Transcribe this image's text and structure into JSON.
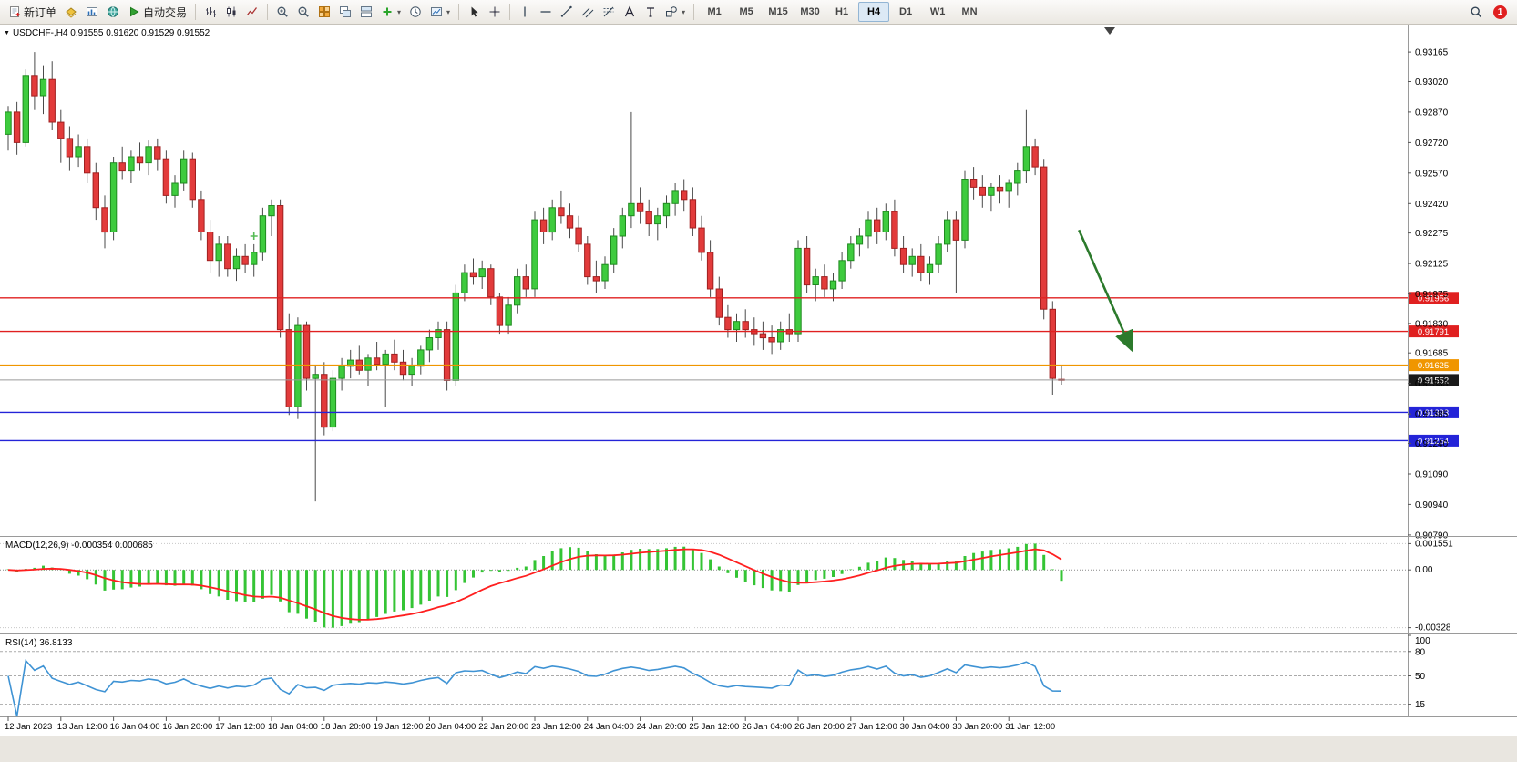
{
  "toolbar": {
    "new_order_label": "新订单",
    "auto_trading_label": "自动交易",
    "left_icons": [
      "profiles-icon",
      "market-watch-icon",
      "navigator-icon"
    ],
    "chart_type_icons": [
      "bar-chart-icon",
      "candlestick-chart-icon",
      "line-chart-icon"
    ],
    "zoom_icons": [
      "zoom-in-icon",
      "zoom-out-icon"
    ],
    "window_icons": [
      "tile-windows-icon",
      "cascade-windows-icon",
      "arrange-windows-icon"
    ],
    "insert_icons": [
      "indicators-icon",
      "period-icon",
      "templates-icon"
    ],
    "cursor_icons": [
      "cursor-icon",
      "crosshair-icon"
    ],
    "draw_icons": [
      "vertical-line-icon",
      "horizontal-line-icon",
      "trendline-icon",
      "channel-icon",
      "fibonacci-icon",
      "text-icon",
      "label-icon",
      "shapes-icon"
    ],
    "timeframes": [
      "M1",
      "M5",
      "M15",
      "M30",
      "H1",
      "H4",
      "D1",
      "W1",
      "MN"
    ],
    "active_timeframe": "H4",
    "search_icon": "search-icon",
    "notification_count": "1"
  },
  "chart_header": {
    "title": "USDCHF-,H4  0.91555 0.91620 0.91529 0.91552",
    "symbol": "USDCHF-",
    "period": "H4"
  },
  "indicator_labels": {
    "macd": "MACD(12,26,9) -0.000354 0.000685",
    "rsi": "RSI(14) 36.8133"
  },
  "price_axis_labels": [
    "0.93165",
    "0.93020",
    "0.92870",
    "0.92720",
    "0.92570",
    "0.92420",
    "0.92275",
    "0.92125",
    "0.91975",
    "0.91830",
    "0.91685",
    "0.91535",
    "0.91385",
    "0.91240",
    "0.91090",
    "0.90940",
    "0.90790"
  ],
  "hlines": [
    {
      "value": 0.91956,
      "label": "0.91956",
      "color": "#e02020",
      "type": "resistance-1"
    },
    {
      "value": 0.91791,
      "label": "0.91791",
      "color": "#e02020",
      "type": "resistance-2"
    },
    {
      "value": 0.91625,
      "label": "0.91625",
      "color": "#f09600",
      "type": "pivot"
    },
    {
      "value": 0.91552,
      "label": "0.91552",
      "color": "#9a9a9a",
      "box": "#1a1a1a",
      "type": "current-price"
    },
    {
      "value": 0.91393,
      "label": "0.91393",
      "color": "#2424d8",
      "type": "support-1"
    },
    {
      "value": 0.91254,
      "label": "0.91254",
      "color": "#2424d8",
      "type": "support-2"
    }
  ],
  "annotations": {
    "down_arrow": {
      "from_index": 122,
      "from_price": 0.9229,
      "to_index": 128,
      "to_price": 0.917
    },
    "plus_marker": {
      "index": 28,
      "price": 0.9226
    }
  },
  "colors": {
    "candle_up": "#3ecb3e",
    "candle_up_border": "#1f8a1f",
    "candle_down": "#e23b3b",
    "candle_down_border": "#a02020",
    "wick": "#4a4a4a",
    "macd_hist": "#35c435",
    "macd_signal": "#ff1f1f",
    "rsi_line": "#3f93d4",
    "arrow": "#2c7a2c",
    "plus_marker": "#55bb55"
  },
  "chart_data": [
    {
      "type": "candlestick",
      "title": "USDCHF-,H4",
      "ylim": [
        0.90785,
        0.933
      ],
      "label_every": 6,
      "x_labels": [
        "12 Jan 2023",
        "13 Jan 12:00",
        "16 Jan 04:00",
        "16 Jan 20:00",
        "17 Jan 12:00",
        "18 Jan 04:00",
        "18 Jan 20:00",
        "19 Jan 12:00",
        "20 Jan 04:00",
        "22 Jan 20:00",
        "23 Jan 12:00",
        "24 Jan 04:00",
        "24 Jan 20:00",
        "25 Jan 12:00",
        "26 Jan 04:00",
        "26 Jan 20:00",
        "27 Jan 12:00",
        "30 Jan 04:00",
        "30 Jan 20:00",
        "31 Jan 12:00"
      ],
      "current_bar": {
        "open": 0.91555,
        "high": 0.9162,
        "low": 0.91529,
        "close": 0.91552
      },
      "ohlc": [
        [
          0.9276,
          0.929,
          0.9268,
          0.9287
        ],
        [
          0.9287,
          0.9292,
          0.9266,
          0.9272
        ],
        [
          0.9272,
          0.9308,
          0.927,
          0.9305
        ],
        [
          0.9305,
          0.93165,
          0.9288,
          0.9295
        ],
        [
          0.9295,
          0.931,
          0.9286,
          0.9303
        ],
        [
          0.9303,
          0.9312,
          0.9278,
          0.9282
        ],
        [
          0.9282,
          0.9288,
          0.9262,
          0.9274
        ],
        [
          0.9274,
          0.928,
          0.9258,
          0.9265
        ],
        [
          0.9265,
          0.9276,
          0.926,
          0.927
        ],
        [
          0.927,
          0.9274,
          0.9252,
          0.9257
        ],
        [
          0.9257,
          0.9262,
          0.9234,
          0.924
        ],
        [
          0.924,
          0.9246,
          0.922,
          0.9228
        ],
        [
          0.9228,
          0.9265,
          0.9224,
          0.9262
        ],
        [
          0.9262,
          0.927,
          0.9254,
          0.9258
        ],
        [
          0.9258,
          0.9268,
          0.9252,
          0.9265
        ],
        [
          0.9265,
          0.9272,
          0.9258,
          0.9262
        ],
        [
          0.9262,
          0.9273,
          0.9256,
          0.927
        ],
        [
          0.927,
          0.9274,
          0.9258,
          0.9264
        ],
        [
          0.9264,
          0.9268,
          0.9242,
          0.9246
        ],
        [
          0.9246,
          0.9256,
          0.924,
          0.9252
        ],
        [
          0.9252,
          0.9268,
          0.9248,
          0.9264
        ],
        [
          0.9264,
          0.9267,
          0.924,
          0.9244
        ],
        [
          0.9244,
          0.9248,
          0.9224,
          0.9228
        ],
        [
          0.9228,
          0.9234,
          0.9208,
          0.9214
        ],
        [
          0.9214,
          0.9226,
          0.9206,
          0.9222
        ],
        [
          0.9222,
          0.9226,
          0.9206,
          0.921
        ],
        [
          0.921,
          0.922,
          0.9204,
          0.9216
        ],
        [
          0.9216,
          0.9222,
          0.9208,
          0.9212
        ],
        [
          0.9212,
          0.9222,
          0.9206,
          0.9218
        ],
        [
          0.9218,
          0.924,
          0.9214,
          0.9236
        ],
        [
          0.9236,
          0.9244,
          0.9226,
          0.9241
        ],
        [
          0.9241,
          0.9244,
          0.9176,
          0.918
        ],
        [
          0.918,
          0.9188,
          0.9138,
          0.9142
        ],
        [
          0.9142,
          0.9186,
          0.9136,
          0.9182
        ],
        [
          0.9182,
          0.9184,
          0.915,
          0.9156
        ],
        [
          0.9156,
          0.9162,
          0.90955,
          0.9158
        ],
        [
          0.9158,
          0.9164,
          0.9128,
          0.9132
        ],
        [
          0.9132,
          0.916,
          0.913,
          0.9156
        ],
        [
          0.9156,
          0.9166,
          0.915,
          0.9162
        ],
        [
          0.9162,
          0.917,
          0.9156,
          0.9165
        ],
        [
          0.9165,
          0.9172,
          0.9158,
          0.916
        ],
        [
          0.916,
          0.9168,
          0.9152,
          0.9166
        ],
        [
          0.9166,
          0.9174,
          0.916,
          0.9163
        ],
        [
          0.9163,
          0.917,
          0.9142,
          0.9168
        ],
        [
          0.9168,
          0.9175,
          0.916,
          0.9164
        ],
        [
          0.9164,
          0.917,
          0.9155,
          0.9158
        ],
        [
          0.9158,
          0.9166,
          0.9152,
          0.9162
        ],
        [
          0.9162,
          0.9172,
          0.9158,
          0.917
        ],
        [
          0.917,
          0.918,
          0.9164,
          0.9176
        ],
        [
          0.9176,
          0.9184,
          0.917,
          0.918
        ],
        [
          0.918,
          0.9184,
          0.915,
          0.9155
        ],
        [
          0.9155,
          0.9202,
          0.9152,
          0.9198
        ],
        [
          0.9198,
          0.9212,
          0.9194,
          0.9208
        ],
        [
          0.9208,
          0.9215,
          0.9202,
          0.9206
        ],
        [
          0.9206,
          0.9214,
          0.92,
          0.921
        ],
        [
          0.921,
          0.9212,
          0.9192,
          0.9196
        ],
        [
          0.9196,
          0.9198,
          0.9178,
          0.9182
        ],
        [
          0.9182,
          0.9196,
          0.9178,
          0.9192
        ],
        [
          0.9192,
          0.921,
          0.9188,
          0.9206
        ],
        [
          0.9206,
          0.9212,
          0.9196,
          0.92
        ],
        [
          0.92,
          0.9238,
          0.9196,
          0.9234
        ],
        [
          0.9234,
          0.924,
          0.9222,
          0.9228
        ],
        [
          0.9228,
          0.9244,
          0.9224,
          0.924
        ],
        [
          0.924,
          0.9248,
          0.9232,
          0.9236
        ],
        [
          0.9236,
          0.9242,
          0.9225,
          0.923
        ],
        [
          0.923,
          0.9236,
          0.9218,
          0.9222
        ],
        [
          0.9222,
          0.9226,
          0.9202,
          0.9206
        ],
        [
          0.9206,
          0.9214,
          0.9198,
          0.9204
        ],
        [
          0.9204,
          0.9216,
          0.92,
          0.9212
        ],
        [
          0.9212,
          0.923,
          0.9208,
          0.9226
        ],
        [
          0.9226,
          0.924,
          0.922,
          0.9236
        ],
        [
          0.9236,
          0.9287,
          0.923,
          0.9242
        ],
        [
          0.9242,
          0.925,
          0.9232,
          0.9238
        ],
        [
          0.9238,
          0.9244,
          0.9226,
          0.9232
        ],
        [
          0.9232,
          0.924,
          0.9224,
          0.9236
        ],
        [
          0.9236,
          0.9246,
          0.923,
          0.9242
        ],
        [
          0.9242,
          0.9252,
          0.9236,
          0.9248
        ],
        [
          0.9248,
          0.9254,
          0.9238,
          0.9244
        ],
        [
          0.9244,
          0.925,
          0.9226,
          0.923
        ],
        [
          0.923,
          0.9236,
          0.9214,
          0.9218
        ],
        [
          0.9218,
          0.9224,
          0.9196,
          0.92
        ],
        [
          0.92,
          0.9206,
          0.9182,
          0.9186
        ],
        [
          0.9186,
          0.9192,
          0.9176,
          0.918
        ],
        [
          0.918,
          0.9188,
          0.9174,
          0.9184
        ],
        [
          0.9184,
          0.919,
          0.9176,
          0.918
        ],
        [
          0.918,
          0.9186,
          0.9172,
          0.9178
        ],
        [
          0.9178,
          0.9184,
          0.917,
          0.9176
        ],
        [
          0.9176,
          0.9182,
          0.9168,
          0.9174
        ],
        [
          0.9174,
          0.9184,
          0.917,
          0.918
        ],
        [
          0.918,
          0.9188,
          0.9174,
          0.9178
        ],
        [
          0.9178,
          0.9224,
          0.9174,
          0.922
        ],
        [
          0.922,
          0.9226,
          0.9198,
          0.9202
        ],
        [
          0.9202,
          0.921,
          0.9194,
          0.9206
        ],
        [
          0.9206,
          0.9212,
          0.9196,
          0.92
        ],
        [
          0.92,
          0.9208,
          0.9194,
          0.9204
        ],
        [
          0.9204,
          0.9218,
          0.92,
          0.9214
        ],
        [
          0.9214,
          0.9226,
          0.921,
          0.9222
        ],
        [
          0.9222,
          0.923,
          0.9216,
          0.9226
        ],
        [
          0.9226,
          0.9238,
          0.922,
          0.9234
        ],
        [
          0.9234,
          0.924,
          0.9222,
          0.9228
        ],
        [
          0.9228,
          0.9242,
          0.9224,
          0.9238
        ],
        [
          0.9238,
          0.9244,
          0.9216,
          0.922
        ],
        [
          0.922,
          0.9226,
          0.9208,
          0.9212
        ],
        [
          0.9212,
          0.922,
          0.9206,
          0.9216
        ],
        [
          0.9216,
          0.9222,
          0.9204,
          0.9208
        ],
        [
          0.9208,
          0.9216,
          0.9202,
          0.9212
        ],
        [
          0.9212,
          0.9226,
          0.9208,
          0.9222
        ],
        [
          0.9222,
          0.9238,
          0.9218,
          0.9234
        ],
        [
          0.9234,
          0.9238,
          0.9198,
          0.9224
        ],
        [
          0.9224,
          0.9258,
          0.922,
          0.9254
        ],
        [
          0.9254,
          0.926,
          0.9244,
          0.925
        ],
        [
          0.925,
          0.9256,
          0.924,
          0.9246
        ],
        [
          0.9246,
          0.9252,
          0.9238,
          0.925
        ],
        [
          0.925,
          0.9256,
          0.9242,
          0.9248
        ],
        [
          0.9248,
          0.9254,
          0.924,
          0.9252
        ],
        [
          0.9252,
          0.9262,
          0.9246,
          0.9258
        ],
        [
          0.9258,
          0.9288,
          0.9252,
          0.927
        ],
        [
          0.927,
          0.9274,
          0.9256,
          0.926
        ],
        [
          0.926,
          0.9264,
          0.9185,
          0.919
        ],
        [
          0.919,
          0.9194,
          0.9148,
          0.9156
        ],
        [
          0.91555,
          0.9162,
          0.91529,
          0.91552
        ]
      ]
    },
    {
      "type": "bar",
      "name": "MACD(12,26,9)",
      "description": "Histogram = EMA12-EMA26 of candle closes; red signal line = EMA9 of histogram (derived from ohlc above)",
      "current_values": {
        "macd": -0.000354,
        "signal": 0.000685
      },
      "axis_labels": [
        "0.001551",
        "0.00",
        "-0.00328"
      ]
    },
    {
      "type": "line",
      "name": "RSI(14)",
      "description": "Relative Strength Index derived from candle closes above",
      "current_value": 36.8133,
      "levels": [
        80,
        50,
        15
      ],
      "ylim": [
        0,
        100
      ],
      "axis_labels": [
        "100",
        "80",
        "50",
        "15"
      ]
    }
  ]
}
